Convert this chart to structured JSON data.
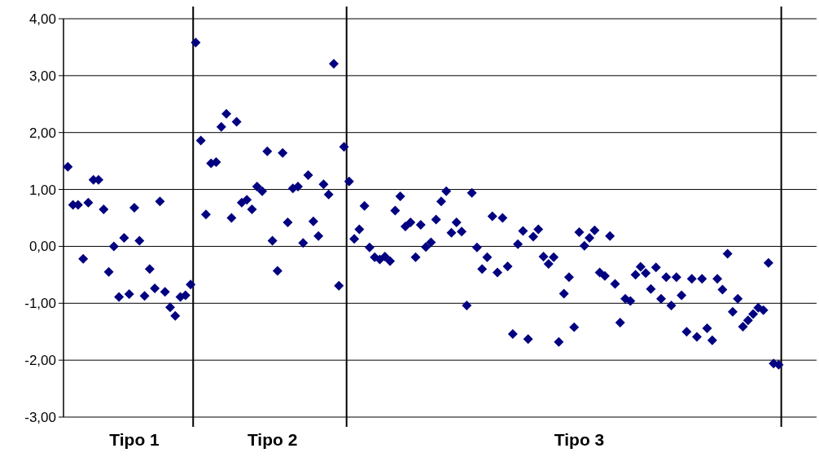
{
  "chart_data": {
    "type": "scatter",
    "categories": [
      null,
      null,
      null,
      null,
      null,
      null,
      null,
      null,
      null,
      null,
      null,
      null,
      null,
      "Tipo 1",
      null,
      null,
      null,
      null,
      null,
      null,
      null,
      null,
      null,
      null,
      null,
      null,
      null,
      null,
      null,
      null,
      null,
      null,
      null,
      null,
      null,
      null,
      null,
      null,
      null,
      null,
      "Tipo 2",
      null,
      null,
      null,
      null,
      null,
      null,
      null,
      null,
      null,
      null,
      null,
      null,
      null,
      null,
      null,
      null,
      null,
      null,
      null,
      null,
      null,
      null,
      null,
      null,
      null,
      null,
      null,
      null,
      null,
      null,
      null,
      null,
      null,
      null,
      null,
      null,
      null,
      null,
      null,
      null,
      null,
      null,
      null,
      null,
      null,
      null,
      null,
      null,
      null,
      null,
      null,
      null,
      null,
      null,
      null,
      null,
      null,
      null,
      null,
      "Tipo 3",
      null,
      null,
      null,
      null,
      null,
      null,
      null,
      null,
      null,
      null,
      null,
      null,
      null,
      null,
      null,
      null,
      null,
      null,
      null,
      null,
      null,
      null,
      null,
      null,
      null,
      null,
      null,
      null,
      null,
      null,
      null,
      null,
      null,
      null,
      null,
      null,
      null,
      null,
      null
    ],
    "series": [
      {
        "color": "#000080",
        "values": [
          1.4,
          0.73,
          0.73,
          -0.22,
          0.77,
          1.17,
          1.17,
          0.65,
          -0.45,
          0.0,
          -0.89,
          0.15,
          -0.84,
          0.68,
          0.1,
          -0.87,
          -0.4,
          -0.74,
          0.79,
          -0.8,
          -1.07,
          -1.22,
          -0.89,
          -0.86,
          -0.67,
          3.58,
          1.86,
          0.56,
          1.46,
          1.48,
          2.1,
          2.33,
          0.5,
          2.19,
          0.77,
          0.82,
          0.65,
          1.05,
          0.97,
          1.67,
          0.1,
          -0.43,
          1.64,
          0.42,
          1.02,
          1.05,
          0.06,
          1.25,
          0.44,
          0.18,
          1.09,
          0.91,
          3.21,
          -0.69,
          1.75,
          1.14,
          0.13,
          0.3,
          0.71,
          -0.02,
          -0.19,
          -0.23,
          -0.18,
          -0.26,
          0.63,
          0.88,
          0.35,
          0.42,
          -0.19,
          0.38,
          -0.01,
          0.07,
          0.47,
          0.79,
          0.97,
          0.24,
          0.42,
          0.26,
          -1.04,
          0.94,
          -0.02,
          -0.4,
          -0.19,
          0.53,
          -0.46,
          0.5,
          -0.35,
          -1.54,
          0.04,
          0.27,
          -1.63,
          0.17,
          0.3,
          -0.18,
          -0.31,
          -0.19,
          -1.68,
          -0.83,
          -0.54,
          -1.42,
          0.25,
          0.01,
          0.15,
          0.28,
          -0.46,
          -0.52,
          0.18,
          -0.66,
          -1.34,
          -0.92,
          -0.96,
          -0.5,
          -0.36,
          -0.47,
          -0.75,
          -0.37,
          -0.92,
          -0.54,
          -1.04,
          -0.54,
          -0.86,
          -1.5,
          -0.57,
          -1.59,
          -0.57,
          -1.44,
          -1.65,
          -0.57,
          -0.76,
          -0.13,
          -1.15,
          -0.92,
          -1.41,
          -1.3,
          -1.19,
          -1.08,
          -1.12,
          -0.29,
          -2.06,
          -2.08
        ]
      }
    ],
    "ylim": [
      -3,
      4
    ],
    "yticks": [
      {
        "value": -3,
        "label": "-3,00"
      },
      {
        "value": -2,
        "label": "-2,00"
      },
      {
        "value": -1,
        "label": "-1,00"
      },
      {
        "value": 0,
        "label": "0,00"
      },
      {
        "value": 1,
        "label": "1,00"
      },
      {
        "value": 2,
        "label": "2,00"
      },
      {
        "value": 3,
        "label": "3,00"
      },
      {
        "value": 4,
        "label": "4,00"
      }
    ],
    "grid": "y",
    "marker": "diamond"
  }
}
